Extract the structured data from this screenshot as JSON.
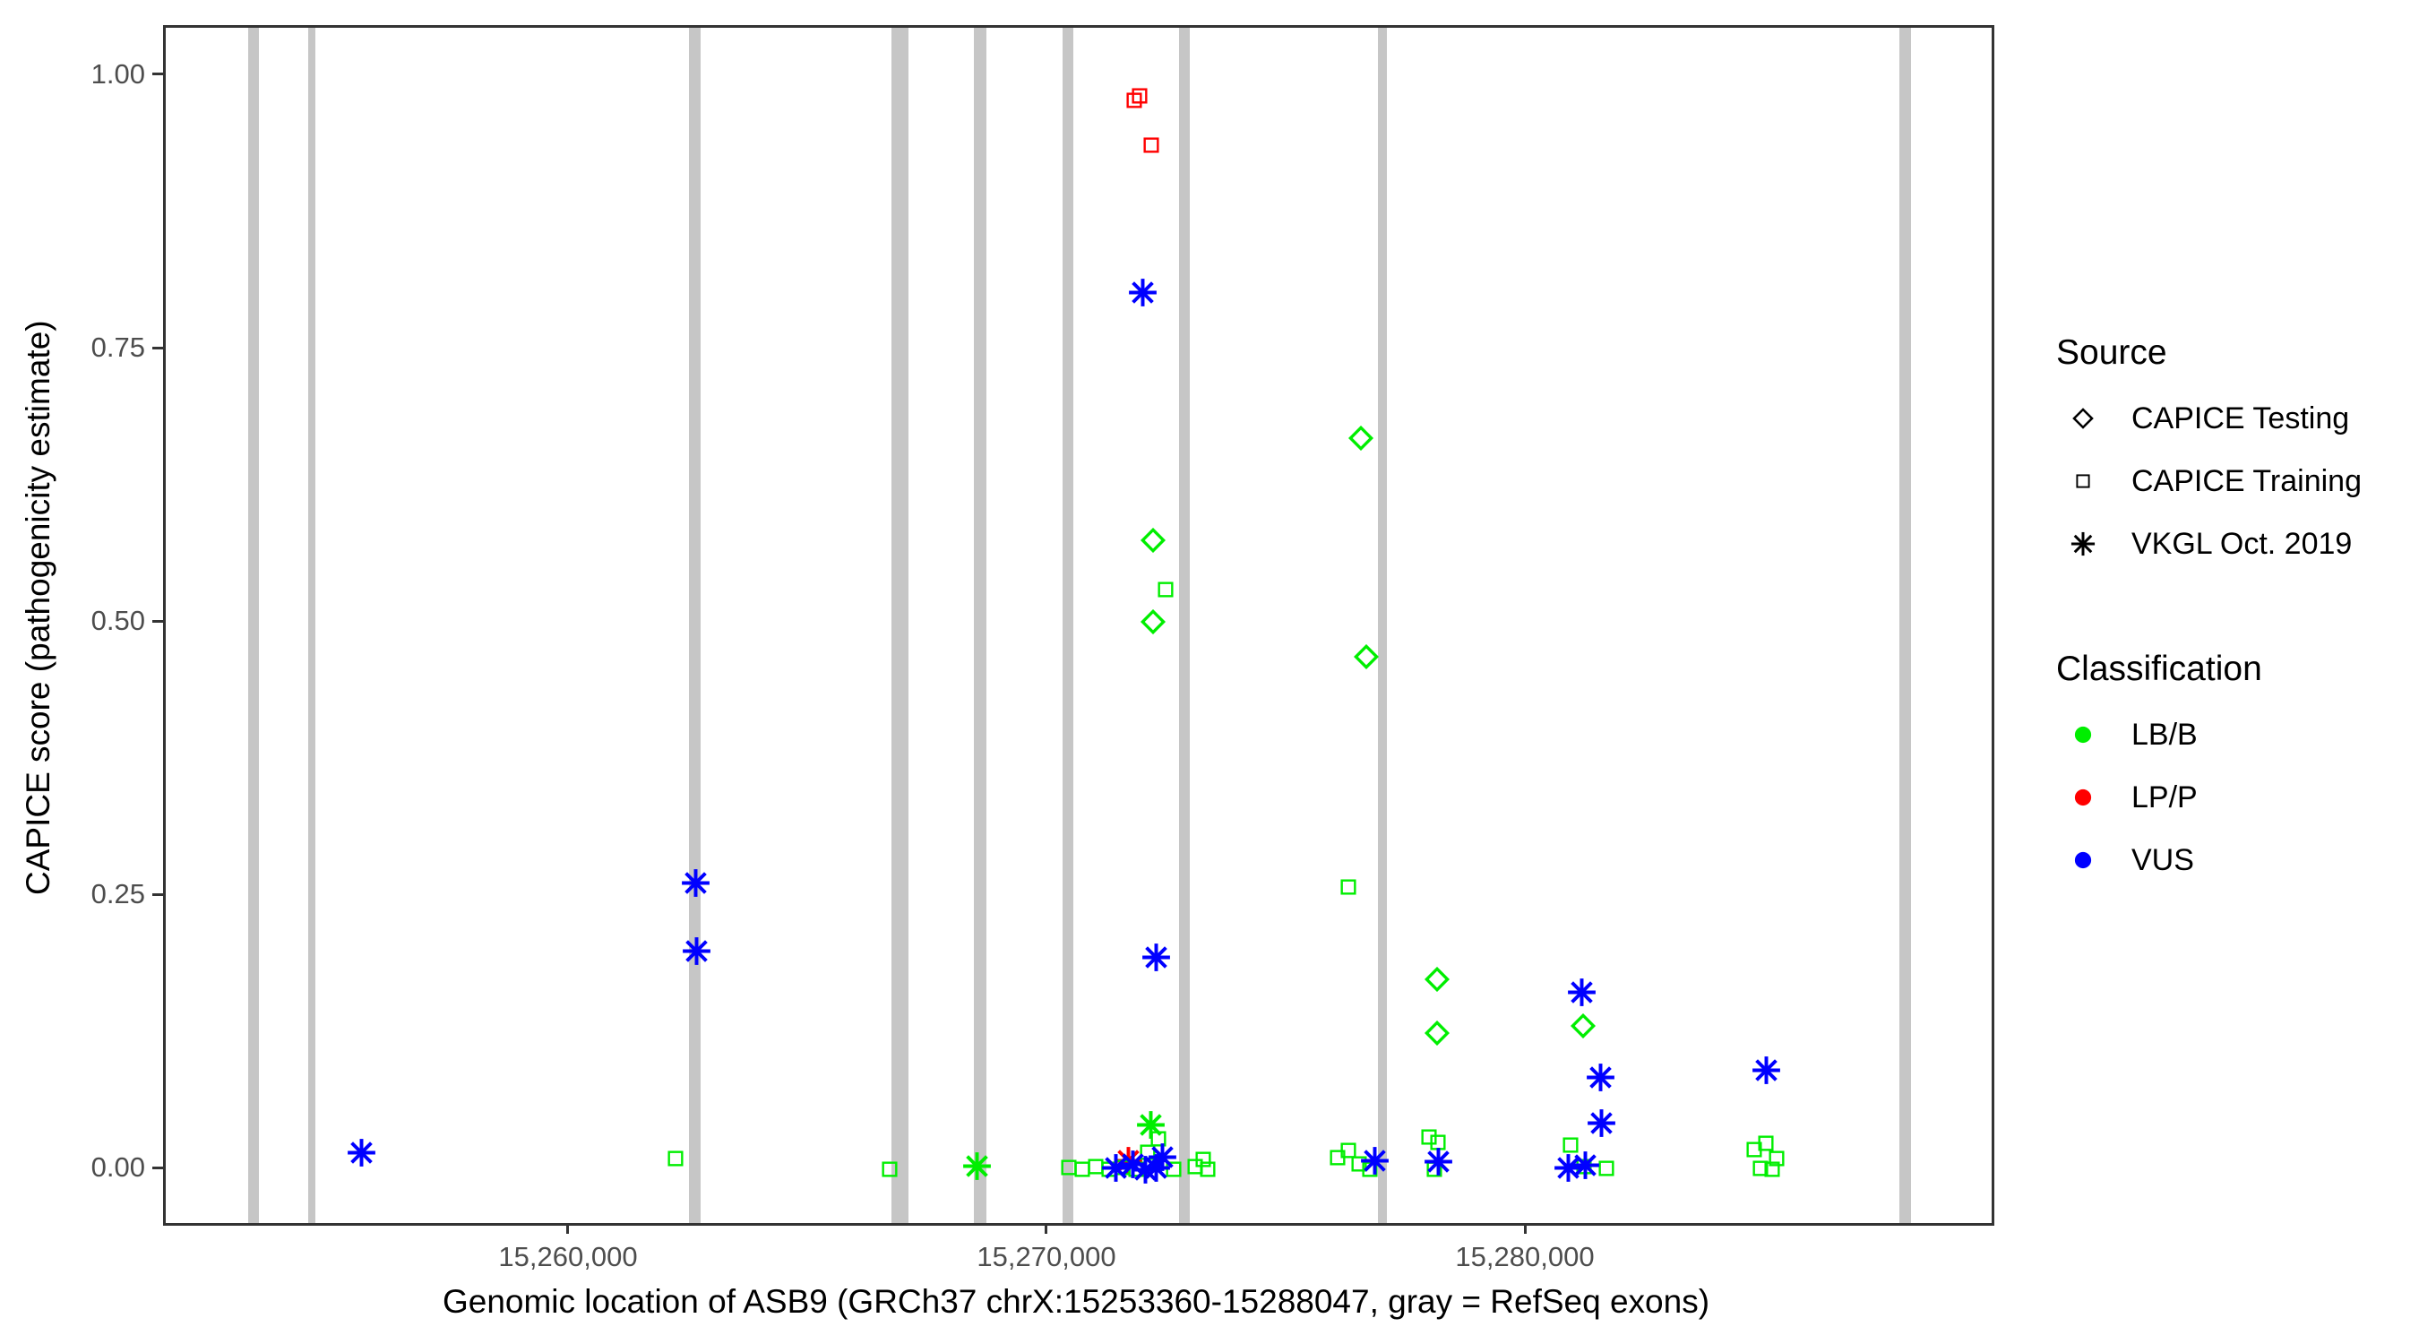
{
  "x_axis": {
    "title": "Genomic location of ASB9 (GRCh37 chrX:15253360-15288047, gray = RefSeq exons)",
    "ticks": [
      {
        "label": "15,260,000",
        "value": 15260000
      },
      {
        "label": "15,270,000",
        "value": 15270000
      },
      {
        "label": "15,280,000",
        "value": 15280000
      }
    ]
  },
  "y_axis": {
    "title": "CAPICE score (pathogenicity estimate)",
    "ticks": [
      {
        "label": "0.00",
        "value": 0.0
      },
      {
        "label": "0.25",
        "value": 0.25
      },
      {
        "label": "0.50",
        "value": 0.5
      },
      {
        "label": "0.75",
        "value": 0.75
      },
      {
        "label": "1.00",
        "value": 1.0
      }
    ]
  },
  "legend": {
    "source": {
      "title": "Source",
      "items": [
        {
          "label": "CAPICE Testing",
          "shape": "diamond"
        },
        {
          "label": "CAPICE Training",
          "shape": "square"
        },
        {
          "label": "VKGL Oct. 2019",
          "shape": "asterisk"
        }
      ]
    },
    "classification": {
      "title": "Classification",
      "items": [
        {
          "label": "LB/B",
          "color": "#00EE00"
        },
        {
          "label": "LP/P",
          "color": "#FF0000"
        },
        {
          "label": "VUS",
          "color": "#0000FF"
        }
      ]
    }
  },
  "colors": {
    "LB/B": "#00EE00",
    "LP/P": "#FF0000",
    "VUS": "#0000FF",
    "exon_gray": "#C6C6C6",
    "panel_border": "#333333",
    "tick_text": "#4D4D4D"
  },
  "chart_data": {
    "type": "scatter",
    "title": "",
    "xlabel": "Genomic location of ASB9 (GRCh37 chrX:15253360-15288047, gray = RefSeq exons)",
    "ylabel": "CAPICE score (pathogenicity estimate)",
    "xlim": [
      15251536,
      15289700
    ],
    "ylim": [
      -0.048,
      1.045
    ],
    "x_tick_values": [
      15260000,
      15270000,
      15280000
    ],
    "y_tick_values": [
      0.0,
      0.25,
      0.5,
      0.75,
      1.0
    ],
    "grid": false,
    "legend_position": "right",
    "exons_gray": [
      [
        15253259,
        15253484
      ],
      [
        15254513,
        15254663
      ],
      [
        15262471,
        15262715
      ],
      [
        15266704,
        15267060
      ],
      [
        15268427,
        15268689
      ],
      [
        15270281,
        15270506
      ],
      [
        15272716,
        15272941
      ],
      [
        15276873,
        15277060
      ],
      [
        15287772,
        15288015
      ]
    ],
    "series": [
      {
        "name": "VKGL Oct. 2019 / LP/P",
        "source": "VKGL Oct. 2019",
        "shape": "asterisk",
        "classification": "LP/P",
        "points": [
          [
            15271648,
            0.009
          ]
        ]
      },
      {
        "name": "CAPICE Training / LB/B",
        "source": "CAPICE Training",
        "shape": "square",
        "classification": "LB/B",
        "points": [
          [
            15262191,
            0.011
          ],
          [
            15266660,
            0.001
          ],
          [
            15270412,
            0.003
          ],
          [
            15270693,
            0.001
          ],
          [
            15270974,
            0.004
          ],
          [
            15271255,
            0.001
          ],
          [
            15271536,
            0.003
          ],
          [
            15271817,
            0.001
          ],
          [
            15272060,
            0.017
          ],
          [
            15272285,
            0.029
          ],
          [
            15272603,
            0.001
          ],
          [
            15273050,
            0.004
          ],
          [
            15273230,
            0.01
          ],
          [
            15273320,
            0.001
          ],
          [
            15272434,
            0.531
          ],
          [
            15276255,
            0.259
          ],
          [
            15276030,
            0.012
          ],
          [
            15276250,
            0.018
          ],
          [
            15276480,
            0.006
          ],
          [
            15276700,
            0.001
          ],
          [
            15277940,
            0.031
          ],
          [
            15278130,
            0.026
          ],
          [
            15278050,
            0.001
          ],
          [
            15280899,
            0.023
          ],
          [
            15281180,
            0.004
          ],
          [
            15281648,
            0.002
          ],
          [
            15284738,
            0.019
          ],
          [
            15284981,
            0.025
          ],
          [
            15284869,
            0.002
          ],
          [
            15285112,
            0.001
          ],
          [
            15285206,
            0.011
          ]
        ]
      },
      {
        "name": "CAPICE Testing / LB/B",
        "source": "CAPICE Testing",
        "shape": "diamond",
        "classification": "LB/B",
        "points": [
          [
            15272165,
            0.576
          ],
          [
            15272172,
            0.502
          ],
          [
            15276520,
            0.67
          ],
          [
            15276630,
            0.47
          ],
          [
            15278109,
            0.175
          ],
          [
            15278109,
            0.126
          ],
          [
            15281161,
            0.132
          ]
        ]
      },
      {
        "name": "VKGL Oct. 2019 / LB/B",
        "source": "VKGL Oct. 2019",
        "shape": "asterisk",
        "classification": "LB/B",
        "points": [
          [
            15268500,
            0.004
          ],
          [
            15272134,
            0.042
          ]
        ]
      },
      {
        "name": "VKGL Oct. 2019 / VUS",
        "source": "VKGL Oct. 2019",
        "shape": "asterisk",
        "classification": "VUS",
        "points": [
          [
            15255620,
            0.016
          ],
          [
            15262616,
            0.263
          ],
          [
            15262627,
            0.201
          ],
          [
            15271404,
            0.002
          ],
          [
            15271760,
            0.006
          ],
          [
            15272004,
            0.001
          ],
          [
            15272247,
            0.002
          ],
          [
            15272378,
            0.012
          ],
          [
            15271960,
            0.803
          ],
          [
            15272234,
            0.195
          ],
          [
            15276816,
            0.009
          ],
          [
            15278130,
            0.008
          ],
          [
            15280861,
            0.002
          ],
          [
            15281217,
            0.005
          ],
          [
            15281142,
            0.163
          ],
          [
            15281517,
            0.085
          ],
          [
            15281536,
            0.043
          ],
          [
            15284981,
            0.092
          ]
        ]
      },
      {
        "name": "CAPICE Training / LP/P",
        "source": "CAPICE Training",
        "shape": "square",
        "classification": "LP/P",
        "points": [
          [
            15271784,
            0.979
          ],
          [
            15271891,
            0.983
          ],
          [
            15272129,
            0.938
          ]
        ]
      }
    ]
  }
}
